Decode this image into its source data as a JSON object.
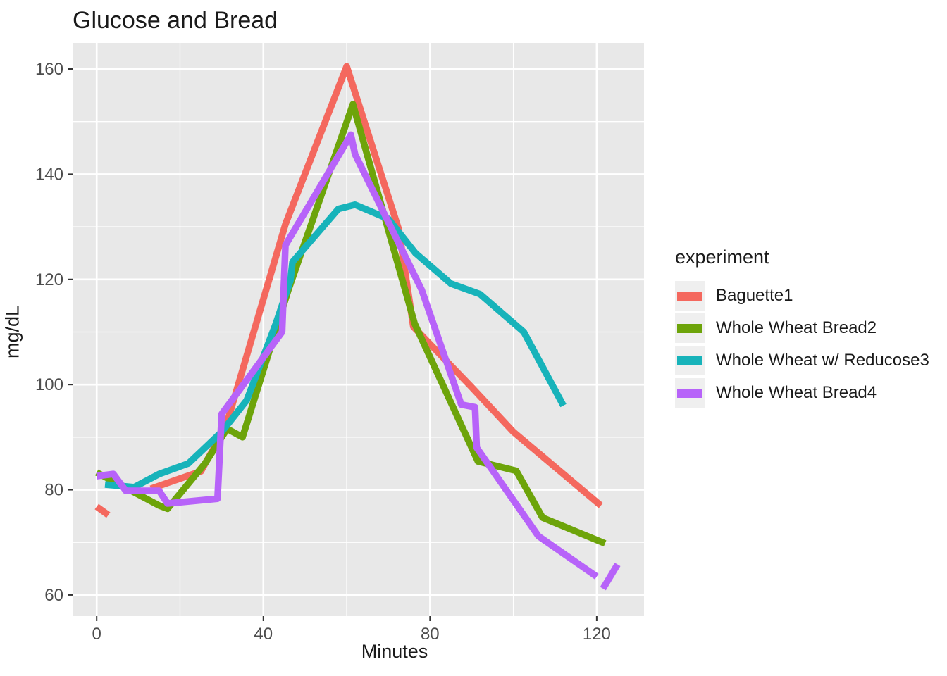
{
  "title": "Glucose and Bread",
  "axes": {
    "x_label": "Minutes",
    "y_label": "mg/dL"
  },
  "legend": {
    "title": "experiment"
  },
  "colors": {
    "background": "#FFFFFF",
    "panel": "#E8E8E8",
    "grid": "#FFFFFF",
    "tick_mark": "#333333",
    "tick_label": "#4D4D4D",
    "text": "#1A1A1A",
    "legend_key_background": "#EFEFEF"
  },
  "chart_data": {
    "type": "line",
    "title": "Glucose and Bread",
    "xlabel": "Minutes",
    "ylabel": "mg/dL",
    "xlim": [
      -6,
      131.5
    ],
    "ylim": [
      56,
      165.5
    ],
    "x_ticks": [
      0,
      40,
      80,
      120
    ],
    "y_ticks": [
      60,
      80,
      100,
      120,
      140,
      160
    ],
    "x_minor_gridlines": [
      20,
      60,
      100
    ],
    "y_minor_gridlines": [
      70,
      90,
      110,
      130,
      150
    ],
    "grid": true,
    "legend_position": "right",
    "legend_title": "experiment",
    "series": [
      {
        "name": "Baguette1",
        "color": "#F4685E",
        "segments": [
          [
            [
              0,
              76.8
            ],
            [
              2.8,
              75.2
            ]
          ],
          [
            [
              13,
              80.2
            ],
            [
              25,
              83.5
            ],
            [
              31,
              92
            ],
            [
              45.3,
              130.5
            ],
            [
              60,
              160.5
            ],
            [
              72.5,
              129.5
            ],
            [
              76,
              111
            ],
            [
              90,
              99.5
            ],
            [
              100,
              91
            ],
            [
              121,
              77
            ]
          ]
        ]
      },
      {
        "name": "Whole Wheat Bread2",
        "color": "#6DA40A",
        "segments": [
          [
            [
              0,
              83.3
            ],
            [
              15,
              77
            ],
            [
              17,
              76.4
            ],
            [
              26,
              85
            ],
            [
              31.3,
              91.6
            ],
            [
              35,
              90
            ],
            [
              46,
              118
            ],
            [
              61.5,
              153.3
            ],
            [
              76.3,
              111.6
            ],
            [
              91.5,
              85.4
            ],
            [
              100.7,
              83.6
            ],
            [
              107,
              74.7
            ],
            [
              122,
              69.8
            ]
          ]
        ]
      },
      {
        "name": "Whole Wheat w/ Reducose3",
        "color": "#17B3BA",
        "segments": [
          [
            [
              2,
              81
            ],
            [
              9,
              80.5
            ],
            [
              15,
              83
            ],
            [
              22,
              85
            ],
            [
              30,
              91
            ],
            [
              36,
              97
            ],
            [
              43,
              111.6
            ],
            [
              46.5,
              119.8
            ],
            [
              47,
              123.3
            ],
            [
              58,
              133.4
            ],
            [
              62,
              134.2
            ],
            [
              70,
              131.5
            ],
            [
              76.5,
              125
            ],
            [
              85,
              119.2
            ],
            [
              92,
              117.2
            ],
            [
              102.5,
              110
            ],
            [
              112,
              96
            ]
          ]
        ]
      },
      {
        "name": "Whole Wheat Bread4",
        "color": "#B763F9",
        "segments": [
          [
            [
              0,
              82.6
            ],
            [
              4,
              83
            ],
            [
              7,
              79.8
            ],
            [
              15,
              79.8
            ],
            [
              17,
              77.4
            ],
            [
              29,
              78.3
            ],
            [
              30,
              94.4
            ],
            [
              44.5,
              110
            ],
            [
              45.3,
              126.5
            ],
            [
              61,
              147.5
            ],
            [
              62,
              143.8
            ],
            [
              78,
              118
            ],
            [
              87.5,
              96.2
            ],
            [
              90.8,
              95.7
            ],
            [
              91.2,
              88
            ],
            [
              106,
              71.2
            ],
            [
              120,
              63.5
            ]
          ],
          [
            [
              121.5,
              61.2
            ],
            [
              125,
              65.8
            ]
          ]
        ]
      }
    ]
  }
}
